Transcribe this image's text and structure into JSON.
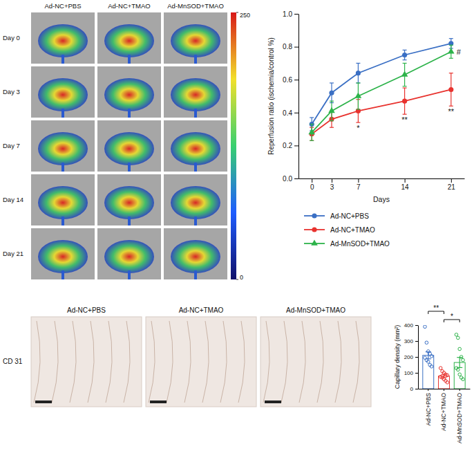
{
  "figure": {
    "laser_doppler": {
      "columns": [
        "Ad-NC+PBS",
        "Ad-NC+TMAO",
        "Ad-MnSOD+TMAO"
      ],
      "rows": [
        "Day 0",
        "Day 3",
        "Day 7",
        "Day 14",
        "Day 21"
      ],
      "colorbar": {
        "range": [
          0,
          250
        ],
        "ticks": [
          0,
          250
        ]
      }
    },
    "ihc": {
      "columns": [
        "Ad-NC+PBS",
        "Ad-NC+TMAO",
        "Ad-MnSOD+TMAO"
      ],
      "row_label": "CD 31"
    }
  },
  "chart_data": [
    {
      "type": "line",
      "x": [
        0,
        3,
        7,
        14,
        21
      ],
      "xlabel": "Days",
      "ylabel": "Reperfusion ratio (ischemia/control %)",
      "xlim": [
        -2,
        23
      ],
      "xticks": [
        0,
        3,
        7,
        14,
        21
      ],
      "ylim": [
        0,
        1
      ],
      "yticks": [
        {
          "value": 0,
          "label": "0.0"
        },
        0.2,
        0.4,
        0.6,
        0.8,
        {
          "value": 1,
          "label": "1.0"
        }
      ],
      "legend": "below",
      "series": [
        {
          "name": "Ad-NC+PBS",
          "color": "#3a6fc4",
          "marker": "circle",
          "values": [
            0.33,
            0.52,
            0.64,
            0.75,
            0.82
          ],
          "errors": [
            0.04,
            0.06,
            0.06,
            0.03,
            0.03
          ]
        },
        {
          "name": "Ad-NC+TMAO",
          "color": "#e8322e",
          "marker": "circle",
          "values": [
            0.27,
            0.36,
            0.41,
            0.47,
            0.54
          ],
          "errors": [
            0.04,
            0.05,
            0.07,
            0.08,
            0.1
          ],
          "significance": [
            null,
            null,
            "*",
            "**",
            "**"
          ]
        },
        {
          "name": "Ad-MnSOD+TMAO",
          "color": "#2db34a",
          "marker": "triangle",
          "values": [
            0.28,
            0.41,
            0.5,
            0.63,
            0.77
          ],
          "errors": [
            0.05,
            0.06,
            0.08,
            0.07,
            0.04
          ],
          "significance": [
            null,
            null,
            null,
            null,
            "#"
          ]
        }
      ]
    },
    {
      "type": "bar",
      "categories": [
        "Ad-NC+PBS",
        "Ad-NC+TMAO",
        "Ad-MnSOD+TMAO"
      ],
      "values": [
        210,
        80,
        165
      ],
      "errors": [
        22,
        10,
        32
      ],
      "points": [
        [
          390,
          290,
          235,
          220,
          205,
          195,
          180,
          170,
          150,
          140
        ],
        [
          130,
          110,
          100,
          90,
          85,
          75,
          70,
          60,
          50,
          40
        ],
        [
          340,
          320,
          250,
          200,
          180,
          130,
          120,
          90,
          70,
          60
        ]
      ],
      "colors": [
        "#3a6fc4",
        "#e8322e",
        "#2db34a"
      ],
      "ylabel": "Capillary density (mm²)",
      "ylim": [
        0,
        400
      ],
      "yticks": [
        0,
        100,
        200,
        300,
        400
      ],
      "comparisons": [
        {
          "pair": [
            0,
            1
          ],
          "label": "**"
        },
        {
          "pair": [
            1,
            2
          ],
          "label": "*"
        }
      ]
    }
  ]
}
